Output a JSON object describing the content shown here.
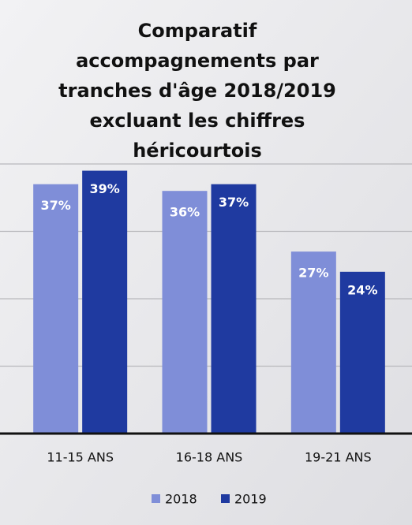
{
  "chart_data": {
    "type": "bar",
    "title": [
      "Comparatif",
      "accompagnements par",
      "tranches d'âge 2018/2019",
      "excluant les chiffres",
      "héricourtois"
    ],
    "categories": [
      "11-15 ANS",
      "16-18 ANS",
      "19-21 ANS"
    ],
    "series": [
      {
        "name": "2018",
        "color": "#7f8ed8",
        "values": [
          37,
          36,
          27
        ],
        "value_labels": [
          "37%",
          "36%",
          "27%"
        ]
      },
      {
        "name": "2019",
        "color": "#1f3aa0",
        "values": [
          39,
          37,
          24
        ],
        "value_labels": [
          "39%",
          "37%",
          "24%"
        ]
      }
    ],
    "ylim": [
      0,
      40
    ],
    "yticks": [
      0,
      10,
      20,
      30,
      40
    ],
    "grid": true,
    "legend": "bottom"
  }
}
